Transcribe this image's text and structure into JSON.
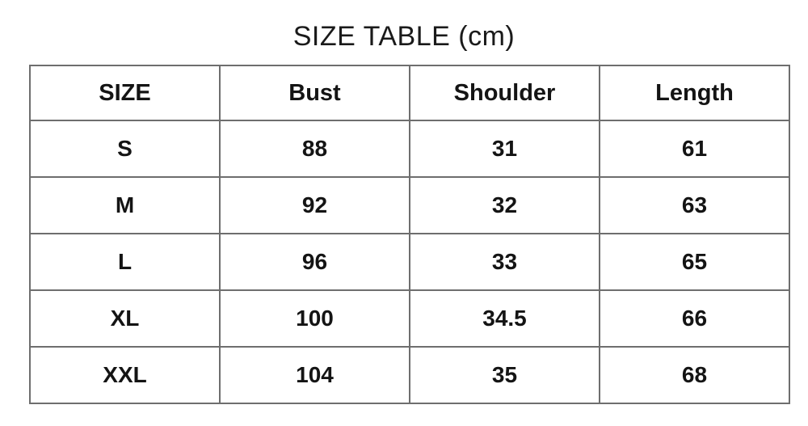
{
  "title": "SIZE TABLE (cm)",
  "table": {
    "columns": [
      "SIZE",
      "Bust",
      "Shoulder",
      "Length"
    ],
    "rows": [
      {
        "size": "S",
        "bust": "88",
        "shoulder": "31",
        "length": "61"
      },
      {
        "size": "M",
        "bust": "92",
        "shoulder": "32",
        "length": "63"
      },
      {
        "size": "L",
        "bust": "96",
        "shoulder": "33",
        "length": "65"
      },
      {
        "size": "XL",
        "bust": "100",
        "shoulder": "34.5",
        "length": "66"
      },
      {
        "size": "XXL",
        "bust": "104",
        "shoulder": "35",
        "length": "68"
      }
    ]
  },
  "colors": {
    "background": "#ffffff",
    "text": "#141414",
    "border": "#6e6e6e"
  },
  "chart_data": {
    "type": "table",
    "title": "SIZE TABLE (cm)",
    "units": "cm",
    "columns": [
      "SIZE",
      "Bust",
      "Shoulder",
      "Length"
    ],
    "rows": [
      [
        "S",
        88,
        31,
        61
      ],
      [
        "M",
        92,
        32,
        63
      ],
      [
        "L",
        96,
        33,
        65
      ],
      [
        "XL",
        100,
        34.5,
        66
      ],
      [
        "XXL",
        104,
        35,
        68
      ]
    ]
  }
}
